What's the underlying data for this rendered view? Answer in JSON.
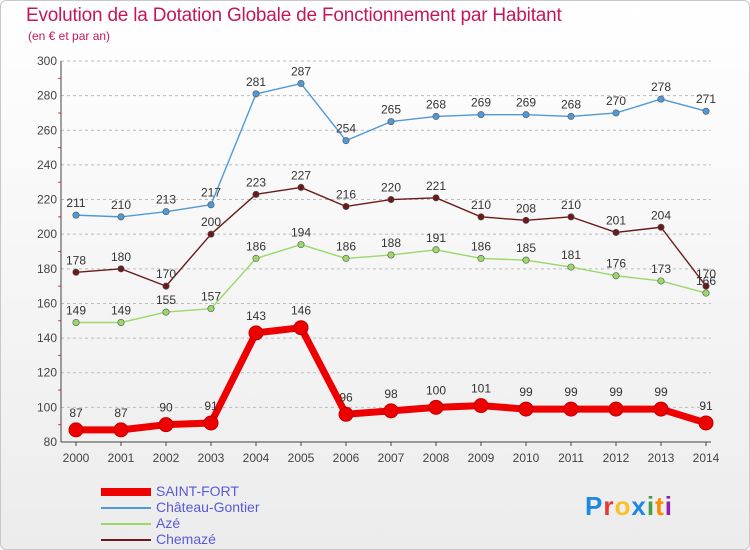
{
  "title": "Evolution de la Dotation Globale de Fonctionnement par Habitant",
  "subtitle": "(en € et par an)",
  "colors": {
    "title": "#c2185b",
    "legend_text": "#5a5ad6",
    "axis": "#444444",
    "grid": "#bbbbbb"
  },
  "logo": {
    "letters": [
      "P",
      "r",
      "o",
      "x",
      "i",
      "t",
      "i"
    ],
    "colors": [
      "#1e88e5",
      "#e53935",
      "#fbc02d",
      "#1e88e5",
      "#43a047",
      "#fb8c00",
      "#8e24aa"
    ]
  },
  "chart_data": {
    "type": "line",
    "title": "Evolution de la Dotation Globale de Fonctionnement par Habitant",
    "subtitle": "(en € et par an)",
    "xlabel": "",
    "ylabel": "",
    "x": [
      "2000",
      "2001",
      "2002",
      "2003",
      "2004",
      "2005",
      "2006",
      "2007",
      "2008",
      "2009",
      "2010",
      "2011",
      "2012",
      "2013",
      "2014"
    ],
    "ylim": [
      80,
      300
    ],
    "yticks": [
      80,
      100,
      120,
      140,
      160,
      180,
      200,
      220,
      240,
      260,
      280,
      300
    ],
    "grid": "horizontal-dashed",
    "legend_position": "bottom-left",
    "series": [
      {
        "name": "Château-Gontier",
        "color": "#4f9ad6",
        "weight": "thin",
        "values": [
          211,
          210,
          213,
          217,
          281,
          287,
          254,
          265,
          268,
          269,
          269,
          268,
          270,
          278,
          271
        ]
      },
      {
        "name": "Chemazé",
        "color": "#6b1a1a",
        "weight": "thin",
        "values": [
          178,
          180,
          170,
          200,
          223,
          227,
          216,
          220,
          221,
          210,
          208,
          210,
          201,
          204,
          170
        ]
      },
      {
        "name": "Azé",
        "color": "#9ad86a",
        "weight": "thin",
        "values": [
          149,
          149,
          155,
          157,
          186,
          194,
          186,
          188,
          191,
          186,
          185,
          181,
          176,
          173,
          166
        ]
      },
      {
        "name": "SAINT-FORT",
        "color": "#ee0000",
        "weight": "thick",
        "values": [
          87,
          87,
          90,
          91,
          143,
          146,
          96,
          98,
          100,
          101,
          99,
          99,
          99,
          99,
          91
        ]
      }
    ],
    "legend": [
      "SAINT-FORT",
      "Château-Gontier",
      "Azé",
      "Chemazé"
    ]
  }
}
